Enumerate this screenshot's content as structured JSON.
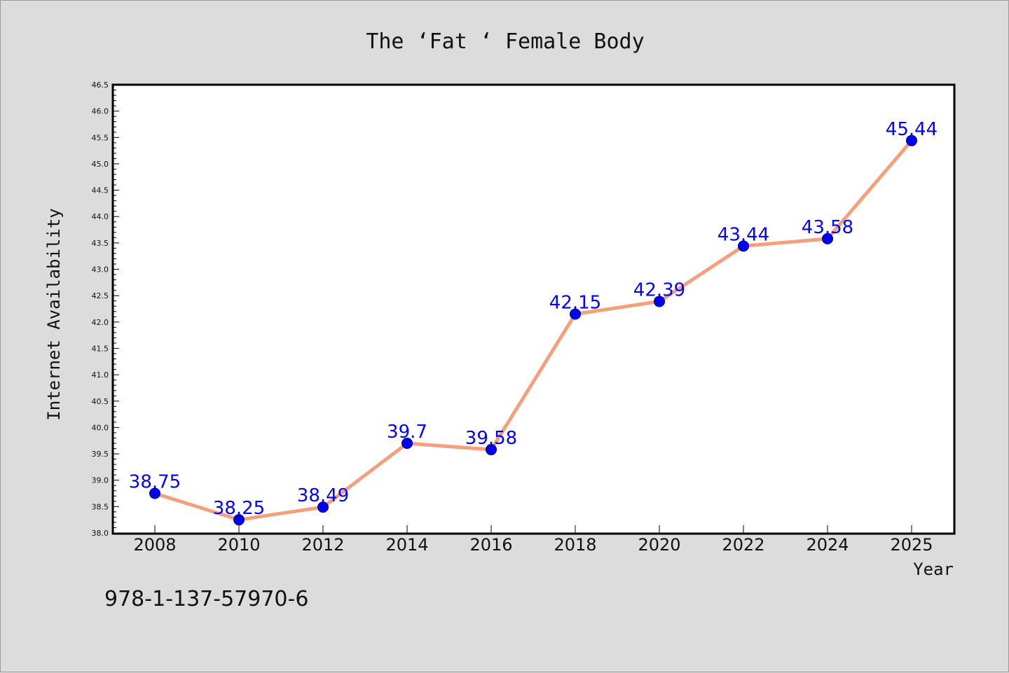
{
  "chart_data": {
    "type": "line",
    "title": "The  ‘Fat ‘ Female Body",
    "xlabel": "Year",
    "ylabel": "Internet Availability",
    "categories": [
      "2008",
      "2010",
      "2012",
      "2014",
      "2016",
      "2018",
      "2020",
      "2022",
      "2024",
      "2025"
    ],
    "series": [
      {
        "values": [
          38.75,
          38.25,
          38.49,
          39.7,
          39.58,
          42.15,
          42.39,
          43.44,
          43.58,
          45.44
        ],
        "data_labels": [
          "38.75",
          "38.25",
          "38.49",
          "39.7",
          "39.58",
          "42.15",
          "42.39",
          "43.44",
          "43.58",
          "45.44"
        ]
      }
    ],
    "ylim": [
      38.0,
      46.5
    ],
    "yticks": [
      "38.0",
      "38.5",
      "39.0",
      "39.5",
      "40.0",
      "40.5",
      "41.0",
      "41.5",
      "42.0",
      "42.5",
      "43.0",
      "43.5",
      "44.0",
      "44.5",
      "45.0",
      "45.5",
      "46.0",
      "46.5"
    ],
    "grid": false,
    "colors": {
      "line": "#f4a07c",
      "marker_fill": "#0000ee",
      "marker_edge": "#000080",
      "data_label": "#0000ff",
      "background": "#dcdcdc",
      "plot_background": "#ffffff"
    }
  },
  "footnote": "978-1-137-57970-6"
}
